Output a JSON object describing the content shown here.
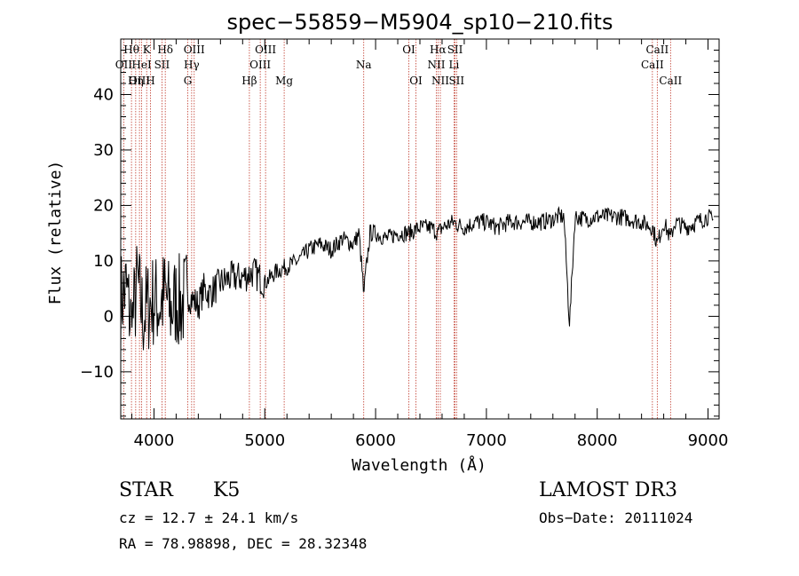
{
  "chart_data": {
    "type": "line",
    "title": "spec−55859−M5904_sp10−210.fits",
    "xlabel": "Wavelength (Å)",
    "ylabel": "Flux (relative)",
    "xlim": [
      3700,
      9100
    ],
    "ylim": [
      -18.5,
      50
    ],
    "xticks": [
      4000,
      5000,
      6000,
      7000,
      8000,
      9000
    ],
    "yticks": [
      -10,
      0,
      10,
      20,
      30,
      40
    ],
    "series": [
      {
        "name": "flux",
        "x": [
          3700,
          3750,
          3800,
          3850,
          3900,
          3950,
          4000,
          4050,
          4100,
          4150,
          4200,
          4250,
          4300,
          4350,
          4400,
          4450,
          4500,
          4600,
          4700,
          4800,
          4900,
          5000,
          5100,
          5200,
          5300,
          5400,
          5500,
          5600,
          5700,
          5800,
          5850,
          5893,
          5950,
          6000,
          6100,
          6200,
          6300,
          6400,
          6500,
          6563,
          6600,
          6700,
          6800,
          6900,
          7000,
          7100,
          7200,
          7300,
          7400,
          7500,
          7600,
          7650,
          7700,
          7750,
          7800,
          7900,
          8000,
          8100,
          8200,
          8300,
          8400,
          8500,
          8542,
          8600,
          8662,
          8700,
          8800,
          8900,
          9000,
          9050
        ],
        "y": [
          3,
          5,
          -2,
          6,
          0,
          2,
          3,
          2,
          4,
          1,
          3,
          2,
          4,
          3,
          2,
          5,
          4,
          6,
          7,
          7,
          8,
          6,
          8,
          9,
          10,
          12,
          13,
          12,
          14,
          13,
          15,
          4.5,
          15,
          15,
          14,
          15,
          15,
          16,
          16,
          15,
          16,
          17,
          16,
          17,
          17,
          16,
          17,
          17,
          17,
          17,
          17.5,
          18,
          18,
          -1.8,
          18,
          17.5,
          18,
          18,
          18,
          17.5,
          17,
          16,
          13,
          17,
          14,
          17,
          16,
          17,
          18,
          17
        ]
      }
    ],
    "lines": [
      {
        "label": "Hθ",
        "wave": 3797,
        "row": 0
      },
      {
        "label": "OII",
        "wave": 3727,
        "row": 1
      },
      {
        "label": "OIII",
        "wave": 3869,
        "row": 2
      },
      {
        "label": "Hη",
        "wave": 3835,
        "row": 2
      },
      {
        "label": "HeI",
        "wave": 3889,
        "row": 1
      },
      {
        "label": "K",
        "wave": 3934,
        "row": 0
      },
      {
        "label": "SII",
        "wave": 4072,
        "row": 1
      },
      {
        "label": "H",
        "wave": 3968,
        "row": 2
      },
      {
        "label": "Hδ",
        "wave": 4102,
        "row": 0
      },
      {
        "label": "OIII",
        "wave": 4363,
        "row": 0
      },
      {
        "label": "Hγ",
        "wave": 4340,
        "row": 1
      },
      {
        "label": "G",
        "wave": 4305,
        "row": 2
      },
      {
        "label": "Hβ",
        "wave": 4861,
        "row": 2
      },
      {
        "label": "OIII",
        "wave": 5007,
        "row": 0
      },
      {
        "label": "OIII",
        "wave": 4959,
        "row": 1
      },
      {
        "label": "Mg",
        "wave": 5175,
        "row": 2
      },
      {
        "label": "Na",
        "wave": 5893,
        "row": 1
      },
      {
        "label": "OI",
        "wave": 6300,
        "row": 0
      },
      {
        "label": "OI",
        "wave": 6364,
        "row": 2
      },
      {
        "label": "Hα",
        "wave": 6563,
        "row": 0
      },
      {
        "label": "NII",
        "wave": 6548,
        "row": 1
      },
      {
        "label": "NII",
        "wave": 6584,
        "row": 2
      },
      {
        "label": "SII",
        "wave": 6717,
        "row": 0
      },
      {
        "label": "Li",
        "wave": 6708,
        "row": 1
      },
      {
        "label": "SII",
        "wave": 6731,
        "row": 2
      },
      {
        "label": "CaII",
        "wave": 8542,
        "row": 0
      },
      {
        "label": "CaII",
        "wave": 8498,
        "row": 1
      },
      {
        "label": "CaII",
        "wave": 8662,
        "row": 2
      }
    ]
  },
  "footer": {
    "object_class": "STAR",
    "subclass": "K5",
    "survey": "LAMOST DR3",
    "cz": "cz = 12.7 ± 24.1 km/s",
    "obs_date": "Obs−Date: 20111024",
    "coords": "RA =  78.98898, DEC =  28.32348"
  },
  "colors": {
    "spectrum": "#000000",
    "emission_lines": "#c0392b",
    "axes": "#000000"
  }
}
